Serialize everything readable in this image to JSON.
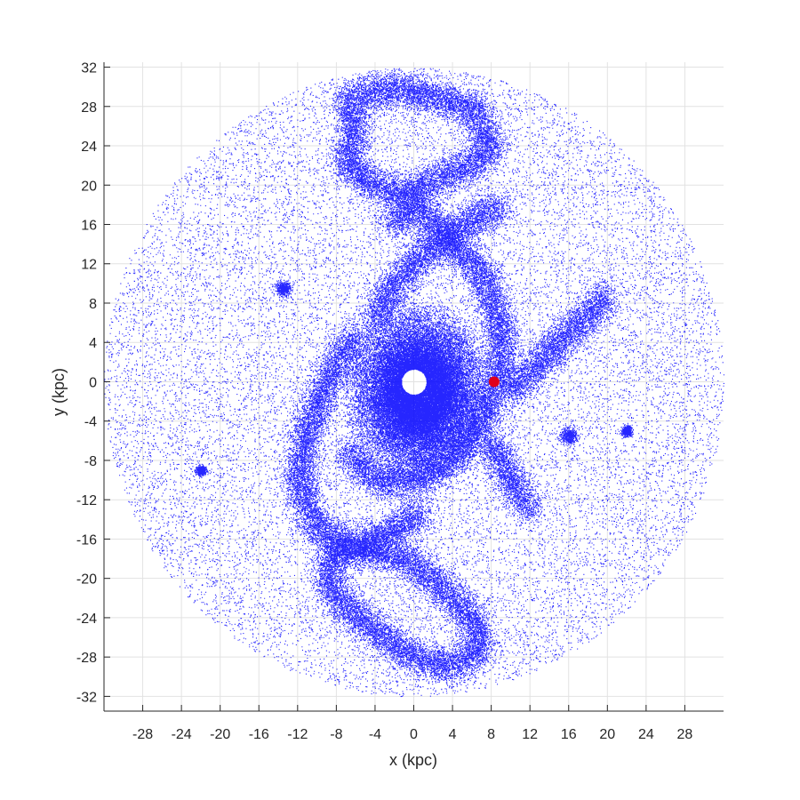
{
  "chart_data": {
    "type": "scatter",
    "xlabel": "x (kpc)",
    "ylabel": "y (kpc)",
    "xlim": [
      -32,
      32
    ],
    "ylim": [
      -33.5,
      32.5
    ],
    "xticks": [
      -28,
      -24,
      -20,
      -16,
      -12,
      -8,
      -4,
      0,
      4,
      8,
      12,
      16,
      20,
      24,
      28
    ],
    "yticks": [
      -32,
      -28,
      -24,
      -20,
      -16,
      -12,
      -8,
      -4,
      0,
      4,
      8,
      12,
      16,
      20,
      24,
      28,
      32
    ],
    "grid": true,
    "disk_radius": 32,
    "central_hole_radius": 1.3,
    "series": [
      {
        "color": "#0000ff",
        "marker_color": "#0000ff",
        "description_components": [
          {
            "kind": "uniform_disk",
            "radius": 32
          },
          {
            "kind": "central_bulge",
            "x": 0.5,
            "y": -1,
            "radius": 8.5
          },
          {
            "kind": "ridge",
            "points": [
              [
                -2.5,
                16
              ],
              [
                0,
                18
              ],
              [
                3,
                15
              ],
              [
                7,
                11
              ],
              [
                9,
                6
              ],
              [
                9,
                1
              ],
              [
                7,
                -4
              ],
              [
                4,
                -8
              ],
              [
                0,
                -10
              ],
              [
                -4,
                -10
              ],
              [
                -7,
                -7
              ]
            ]
          },
          {
            "kind": "ridge",
            "points": [
              [
                -4,
                6
              ],
              [
                -2,
                10
              ],
              [
                1,
                13
              ],
              [
                4,
                15
              ],
              [
                7,
                17
              ],
              [
                9,
                18
              ]
            ]
          },
          {
            "kind": "ridge",
            "points": [
              [
                -6,
                5
              ],
              [
                -9,
                0
              ],
              [
                -11,
                -5
              ],
              [
                -12,
                -10
              ],
              [
                -10,
                -15
              ],
              [
                -6,
                -17
              ],
              [
                -2,
                -15
              ],
              [
                1,
                -13
              ]
            ]
          },
          {
            "kind": "ridge",
            "points": [
              [
                -7,
                29
              ],
              [
                -6,
                26
              ],
              [
                -7,
                22
              ],
              [
                -4,
                20
              ],
              [
                -1,
                19
              ],
              [
                3,
                21
              ],
              [
                6,
                22
              ],
              [
                8,
                24
              ],
              [
                6,
                28
              ],
              [
                2,
                29
              ],
              [
                -2,
                30
              ],
              [
                -6,
                29
              ]
            ]
          },
          {
            "kind": "ridge",
            "points": [
              [
                -8,
                -17
              ],
              [
                -9,
                -20
              ],
              [
                -7,
                -23
              ],
              [
                -3,
                -26
              ],
              [
                0,
                -28
              ],
              [
                4,
                -29
              ],
              [
                7,
                -27
              ],
              [
                6,
                -24
              ],
              [
                3,
                -21
              ],
              [
                -1,
                -18
              ],
              [
                -5,
                -17
              ],
              [
                -8,
                -17
              ]
            ]
          },
          {
            "kind": "ridge",
            "points": [
              [
                10,
                -1
              ],
              [
                13,
                2
              ],
              [
                16,
                5
              ],
              [
                19,
                8
              ],
              [
                20,
                9
              ]
            ]
          },
          {
            "kind": "ridge",
            "points": [
              [
                8,
                -6
              ],
              [
                10,
                -10
              ],
              [
                12,
                -13
              ]
            ]
          },
          {
            "kind": "clump",
            "x": 16,
            "y": -5.5,
            "radius": 0.8
          },
          {
            "kind": "clump",
            "x": -13.5,
            "y": 9.5,
            "radius": 0.7
          },
          {
            "kind": "clump",
            "x": -22,
            "y": -9,
            "radius": 0.5
          },
          {
            "kind": "clump",
            "x": 22,
            "y": -5,
            "radius": 0.5
          }
        ]
      },
      {
        "color": "#e0001b",
        "points": [
          [
            8.3,
            0
          ]
        ]
      }
    ]
  }
}
